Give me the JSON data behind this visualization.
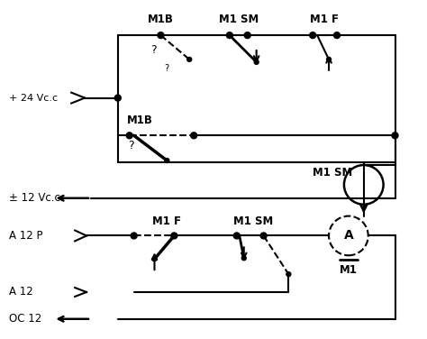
{
  "bg_color": "#ffffff",
  "line_color": "#000000",
  "labels": {
    "plus24": "+ 24 Vc.c",
    "pm12": "± 12 Vc.c",
    "M1B_top": "M1B",
    "M1SM_top": "M1 SM",
    "M1F_top": "M1 F",
    "M1B_mid": "M1B",
    "M1SM_motor": "M1 SM",
    "A12P": "A 12 P",
    "M1F_bot": "M1 F",
    "M1SM_bot": "M1 SM",
    "A12": "A 12",
    "OC12": "OC 12",
    "M1_label": "M1",
    "question": "?"
  }
}
